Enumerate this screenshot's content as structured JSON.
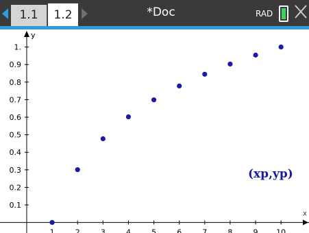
{
  "tabs": [
    {
      "label": "1.1",
      "active": false
    },
    {
      "label": "1.2",
      "active": true
    }
  ],
  "doc_title": "*Doc",
  "angle_mode": "RAD",
  "icons": {
    "nav_left": "triangle-left-icon",
    "nav_right": "triangle-right-icon",
    "battery": "battery-icon",
    "close": "close-icon"
  },
  "colors": {
    "accent": "#2d9cdb",
    "points": "#1a1aa6",
    "battery": "#3cd35a"
  },
  "graph": {
    "function_label": "(xp,yp)"
  },
  "chart_data": {
    "type": "scatter",
    "xlabel": "x",
    "ylabel": "y",
    "x_ticks": [
      "1",
      "2",
      "3",
      "4",
      "5",
      "6",
      "7",
      "8",
      "9",
      "10"
    ],
    "y_ticks": [
      "0.1",
      "0.2",
      "0.3",
      "0.4",
      "0.5",
      "0.6",
      "0.7",
      "0.8",
      "0.9",
      "1."
    ],
    "xlim": [
      -1.05,
      11.1
    ],
    "ylim": [
      -0.06,
      1.1
    ],
    "x": [
      1,
      2,
      3,
      4,
      5,
      6,
      7,
      8,
      9,
      10
    ],
    "y": [
      0,
      0.301,
      0.477,
      0.602,
      0.699,
      0.778,
      0.845,
      0.903,
      0.954,
      1.0
    ],
    "grid": false
  }
}
